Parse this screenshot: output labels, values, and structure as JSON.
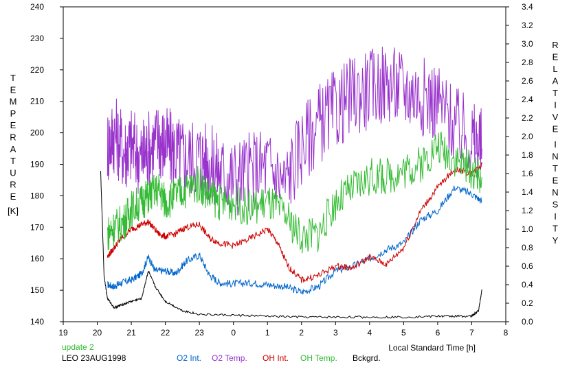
{
  "chart_data": {
    "type": "line",
    "xlabel": "Local Standard Time [h]",
    "ylabel_left_letters": [
      "T",
      "E",
      "M",
      "P",
      "E",
      "R",
      "A",
      "T",
      "U",
      "R",
      "E"
    ],
    "ylabel_left_unit": "[K]",
    "ylabel_right_word1": [
      "R",
      "E",
      "L",
      "A",
      "T",
      "I",
      "V",
      "E"
    ],
    "ylabel_right_word2": [
      "I",
      "N",
      "T",
      "E",
      "N",
      "S",
      "I",
      "T",
      "Y"
    ],
    "x_ticks": [
      "19",
      "20",
      "21",
      "22",
      "23",
      "0",
      "1",
      "2",
      "3",
      "4",
      "5",
      "6",
      "7",
      "8"
    ],
    "y_left_ticks": [
      "140",
      "150",
      "160",
      "170",
      "180",
      "190",
      "200",
      "210",
      "220",
      "230",
      "240"
    ],
    "y_right_ticks": [
      "0.0",
      "0.2",
      "0.4",
      "0.6",
      "0.8",
      "1.0",
      "1.2",
      "1.4",
      "1.6",
      "1.8",
      "2.0",
      "2.2",
      "2.4",
      "2.6",
      "2.8",
      "3.0",
      "3.2",
      "3.4"
    ],
    "xlim": [
      19,
      32
    ],
    "ylim_left": [
      140,
      240
    ],
    "ylim_right": [
      0,
      3.4
    ],
    "grid": false,
    "series": [
      {
        "name": "O2 Int.",
        "axis": "right",
        "color": "#0066cc",
        "x": [
          20.3,
          20.5,
          20.7,
          21.0,
          21.3,
          21.5,
          21.7,
          22.0,
          22.3,
          22.6,
          23.0,
          23.3,
          23.6,
          24.0,
          24.5,
          25.0,
          25.5,
          26.0,
          26.5,
          27.0,
          27.5,
          28.0,
          28.5,
          29.0,
          29.5,
          30.0,
          30.5,
          31.0,
          31.3
        ],
        "y": [
          0.4,
          0.38,
          0.42,
          0.45,
          0.52,
          0.7,
          0.55,
          0.55,
          0.52,
          0.65,
          0.72,
          0.5,
          0.42,
          0.41,
          0.42,
          0.4,
          0.38,
          0.32,
          0.38,
          0.55,
          0.6,
          0.68,
          0.78,
          0.85,
          1.1,
          1.2,
          1.45,
          1.38,
          1.3
        ]
      },
      {
        "name": "O2 Temp.",
        "axis": "left",
        "color": "#9933cc",
        "x": [
          20.3,
          20.5,
          20.8,
          21.0,
          21.3,
          21.5,
          21.8,
          22.0,
          22.3,
          22.6,
          23.0,
          23.3,
          23.6,
          24.0,
          24.5,
          25.0,
          25.5,
          26.0,
          26.5,
          27.0,
          27.5,
          28.0,
          28.5,
          29.0,
          29.5,
          30.0,
          30.5,
          31.0,
          31.3
        ],
        "y": [
          196,
          200,
          194,
          196,
          192,
          195,
          198,
          196,
          194,
          192,
          193,
          190,
          188,
          186,
          188,
          190,
          184,
          196,
          203,
          207,
          212,
          214,
          216,
          214,
          212,
          210,
          202,
          198,
          195
        ]
      },
      {
        "name": "OH Int.",
        "axis": "right",
        "color": "#cc0000",
        "x": [
          20.3,
          20.5,
          20.7,
          21.0,
          21.3,
          21.5,
          21.8,
          22.0,
          22.3,
          22.6,
          23.0,
          23.3,
          23.6,
          24.0,
          24.5,
          25.0,
          25.3,
          25.6,
          26.0,
          26.5,
          27.0,
          27.5,
          28.0,
          28.5,
          29.0,
          29.5,
          30.0,
          30.5,
          31.0,
          31.3
        ],
        "y": [
          0.7,
          0.8,
          0.9,
          1.0,
          1.05,
          1.08,
          0.95,
          0.92,
          0.95,
          1.02,
          1.05,
          0.9,
          0.85,
          0.82,
          0.9,
          1.0,
          0.85,
          0.6,
          0.45,
          0.5,
          0.6,
          0.58,
          0.7,
          0.62,
          0.8,
          1.2,
          1.45,
          1.65,
          1.6,
          1.7
        ]
      },
      {
        "name": "OH Temp.",
        "axis": "left",
        "color": "#33bb33",
        "x": [
          20.3,
          20.5,
          20.8,
          21.0,
          21.3,
          21.5,
          21.8,
          22.0,
          22.3,
          22.6,
          23.0,
          23.3,
          23.6,
          24.0,
          24.5,
          25.0,
          25.5,
          26.0,
          26.5,
          27.0,
          27.5,
          28.0,
          28.5,
          29.0,
          29.5,
          30.0,
          30.5,
          31.0,
          31.3
        ],
        "y": [
          168,
          170,
          172,
          176,
          178,
          180,
          182,
          178,
          180,
          182,
          184,
          180,
          178,
          178,
          176,
          178,
          174,
          167,
          168,
          178,
          182,
          186,
          186,
          188,
          190,
          196,
          192,
          188,
          186
        ]
      },
      {
        "name": "Bckgrd.",
        "axis": "right",
        "color": "#000000",
        "x": [
          20.1,
          20.2,
          20.3,
          20.5,
          20.7,
          21.0,
          21.3,
          21.5,
          21.7,
          22.0,
          22.5,
          23.0,
          24.0,
          25.0,
          26.0,
          27.0,
          28.0,
          29.0,
          30.0,
          30.5,
          31.0,
          31.2,
          31.3
        ],
        "y": [
          1.62,
          0.5,
          0.25,
          0.15,
          0.18,
          0.22,
          0.25,
          0.55,
          0.38,
          0.22,
          0.12,
          0.08,
          0.07,
          0.06,
          0.05,
          0.05,
          0.05,
          0.05,
          0.06,
          0.06,
          0.06,
          0.12,
          0.35
        ]
      }
    ]
  },
  "footer": {
    "update_text": "update 2",
    "site_date": "LEO 23AUG1998",
    "update_color": "#33bb33"
  }
}
